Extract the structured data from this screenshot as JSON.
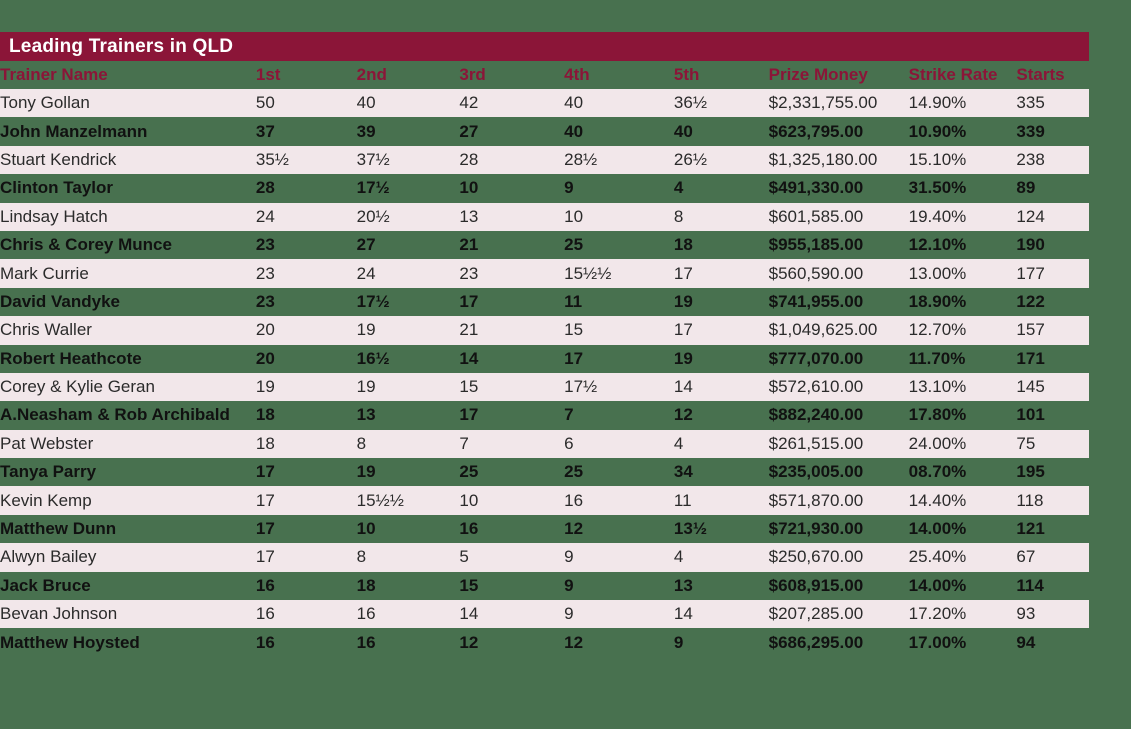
{
  "title": "Leading Trainers in QLD",
  "colors": {
    "background_green": "#48714F",
    "title_bar_maroon": "#8B1538",
    "title_text_white": "#FFFFFF",
    "header_text_maroon": "#8B1538",
    "row_band_pink": "#F2E7EA",
    "row_text_regular": "#2B2B2B",
    "row_text_bold": "#111111"
  },
  "chart_data": {
    "type": "table",
    "title": "Leading Trainers in QLD",
    "columns": [
      {
        "key": "name",
        "label": "Trainer Name"
      },
      {
        "key": "first",
        "label": "1st"
      },
      {
        "key": "second",
        "label": "2nd"
      },
      {
        "key": "third",
        "label": "3rd"
      },
      {
        "key": "fourth",
        "label": "4th"
      },
      {
        "key": "fifth",
        "label": "5th"
      },
      {
        "key": "prize",
        "label": "Prize Money"
      },
      {
        "key": "strike",
        "label": "Strike Rate"
      },
      {
        "key": "starts",
        "label": "Starts"
      }
    ],
    "rows": [
      {
        "name": "Tony Gollan",
        "first": "50",
        "second": "40",
        "third": "42",
        "fourth": "40",
        "fifth": "36½",
        "prize": "$2,331,755.00",
        "strike": "14.90%",
        "starts": "335"
      },
      {
        "name": "John Manzelmann",
        "first": "37",
        "second": "39",
        "third": "27",
        "fourth": "40",
        "fifth": "40",
        "prize": "$623,795.00",
        "strike": "10.90%",
        "starts": "339"
      },
      {
        "name": "Stuart Kendrick",
        "first": "35½",
        "second": "37½",
        "third": "28",
        "fourth": "28½",
        "fifth": "26½",
        "prize": "$1,325,180.00",
        "strike": "15.10%",
        "starts": "238"
      },
      {
        "name": "Clinton Taylor",
        "first": "28",
        "second": "17½",
        "third": "10",
        "fourth": "9",
        "fifth": "4",
        "prize": "$491,330.00",
        "strike": "31.50%",
        "starts": "89"
      },
      {
        "name": "Lindsay Hatch",
        "first": "24",
        "second": "20½",
        "third": "13",
        "fourth": "10",
        "fifth": "8",
        "prize": "$601,585.00",
        "strike": "19.40%",
        "starts": "124"
      },
      {
        "name": "Chris & Corey Munce",
        "first": "23",
        "second": "27",
        "third": "21",
        "fourth": "25",
        "fifth": "18",
        "prize": "$955,185.00",
        "strike": "12.10%",
        "starts": "190"
      },
      {
        "name": "Mark Currie",
        "first": "23",
        "second": "24",
        "third": "23",
        "fourth": "15½½",
        "fifth": "17",
        "prize": "$560,590.00",
        "strike": "13.00%",
        "starts": "177"
      },
      {
        "name": "David Vandyke",
        "first": "23",
        "second": "17½",
        "third": "17",
        "fourth": "11",
        "fifth": "19",
        "prize": "$741,955.00",
        "strike": "18.90%",
        "starts": "122"
      },
      {
        "name": "Chris Waller",
        "first": "20",
        "second": "19",
        "third": "21",
        "fourth": "15",
        "fifth": "17",
        "prize": "$1,049,625.00",
        "strike": "12.70%",
        "starts": "157"
      },
      {
        "name": "Robert Heathcote",
        "first": "20",
        "second": "16½",
        "third": "14",
        "fourth": "17",
        "fifth": "19",
        "prize": "$777,070.00",
        "strike": "11.70%",
        "starts": "171"
      },
      {
        "name": "Corey & Kylie Geran",
        "first": "19",
        "second": "19",
        "third": "15",
        "fourth": "17½",
        "fifth": "14",
        "prize": "$572,610.00",
        "strike": "13.10%",
        "starts": "145"
      },
      {
        "name": "A.Neasham & Rob Archibald",
        "first": "18",
        "second": "13",
        "third": "17",
        "fourth": "7",
        "fifth": "12",
        "prize": "$882,240.00",
        "strike": "17.80%",
        "starts": "101"
      },
      {
        "name": "Pat Webster",
        "first": "18",
        "second": "8",
        "third": "7",
        "fourth": "6",
        "fifth": "4",
        "prize": "$261,515.00",
        "strike": "24.00%",
        "starts": "75"
      },
      {
        "name": "Tanya Parry",
        "first": "17",
        "second": "19",
        "third": "25",
        "fourth": "25",
        "fifth": "34",
        "prize": "$235,005.00",
        "strike": "08.70%",
        "starts": "195"
      },
      {
        "name": "Kevin Kemp",
        "first": "17",
        "second": "15½½",
        "third": "10",
        "fourth": "16",
        "fifth": "11",
        "prize": "$571,870.00",
        "strike": "14.40%",
        "starts": "118"
      },
      {
        "name": "Matthew Dunn",
        "first": "17",
        "second": "10",
        "third": "16",
        "fourth": "12",
        "fifth": "13½",
        "prize": "$721,930.00",
        "strike": "14.00%",
        "starts": "121"
      },
      {
        "name": "Alwyn Bailey",
        "first": "17",
        "second": "8",
        "third": "5",
        "fourth": "9",
        "fifth": "4",
        "prize": "$250,670.00",
        "strike": "25.40%",
        "starts": "67"
      },
      {
        "name": "Jack Bruce",
        "first": "16",
        "second": "18",
        "third": "15",
        "fourth": "9",
        "fifth": "13",
        "prize": "$608,915.00",
        "strike": "14.00%",
        "starts": "114"
      },
      {
        "name": "Bevan Johnson",
        "first": "16",
        "second": "16",
        "third": "14",
        "fourth": "9",
        "fifth": "14",
        "prize": "$207,285.00",
        "strike": "17.20%",
        "starts": "93"
      },
      {
        "name": "Matthew Hoysted",
        "first": "16",
        "second": "16",
        "third": "12",
        "fourth": "12",
        "fifth": "9",
        "prize": "$686,295.00",
        "strike": "17.00%",
        "starts": "94"
      }
    ]
  }
}
